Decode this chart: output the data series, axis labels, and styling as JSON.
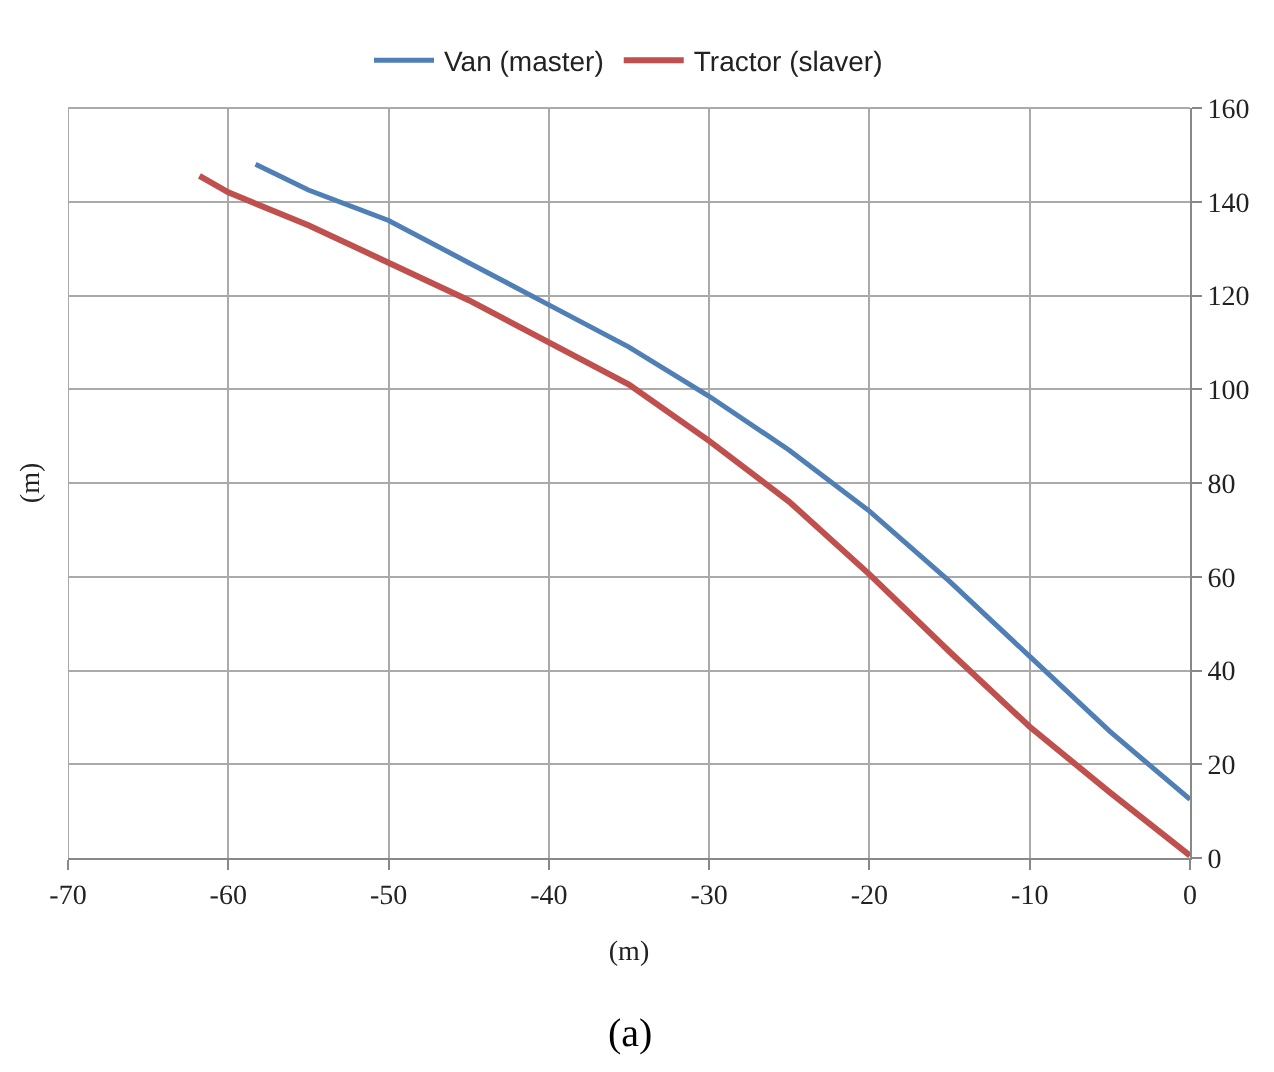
{
  "chart_data": {
    "type": "line",
    "xlabel": "(m)",
    "ylabel": "(m)",
    "xlim": [
      -70,
      0
    ],
    "xticks": [
      -70,
      -60,
      -50,
      -40,
      -30,
      -20,
      -10,
      0
    ],
    "ylim": [
      0,
      160
    ],
    "yticks": [
      0,
      20,
      40,
      60,
      80,
      100,
      120,
      140,
      160
    ],
    "grid": true,
    "legend": "top",
    "marker": "none",
    "line_style": "solid",
    "annotations": [
      "(a)"
    ],
    "series": [
      {
        "name": "Van (master)",
        "color": "#4f7fb5",
        "x": [
          -58.3,
          -55,
          -50,
          -45,
          -40,
          -35,
          -30,
          -25,
          -20,
          -15,
          -10,
          -5,
          0
        ],
        "values": [
          148,
          142.5,
          136,
          127,
          118,
          109,
          98.5,
          87,
          74,
          59,
          43,
          27,
          12.5
        ]
      },
      {
        "name": "Tractor (slaver)",
        "color": "#c0504d",
        "x": [
          -61.8,
          -60,
          -55,
          -50,
          -45,
          -40,
          -35,
          -30,
          -25,
          -20,
          -15,
          -10,
          -5,
          0
        ],
        "values": [
          145.5,
          142,
          135,
          127,
          119,
          110,
          101,
          89,
          76,
          60.5,
          44,
          28,
          14,
          0.5
        ]
      }
    ]
  }
}
